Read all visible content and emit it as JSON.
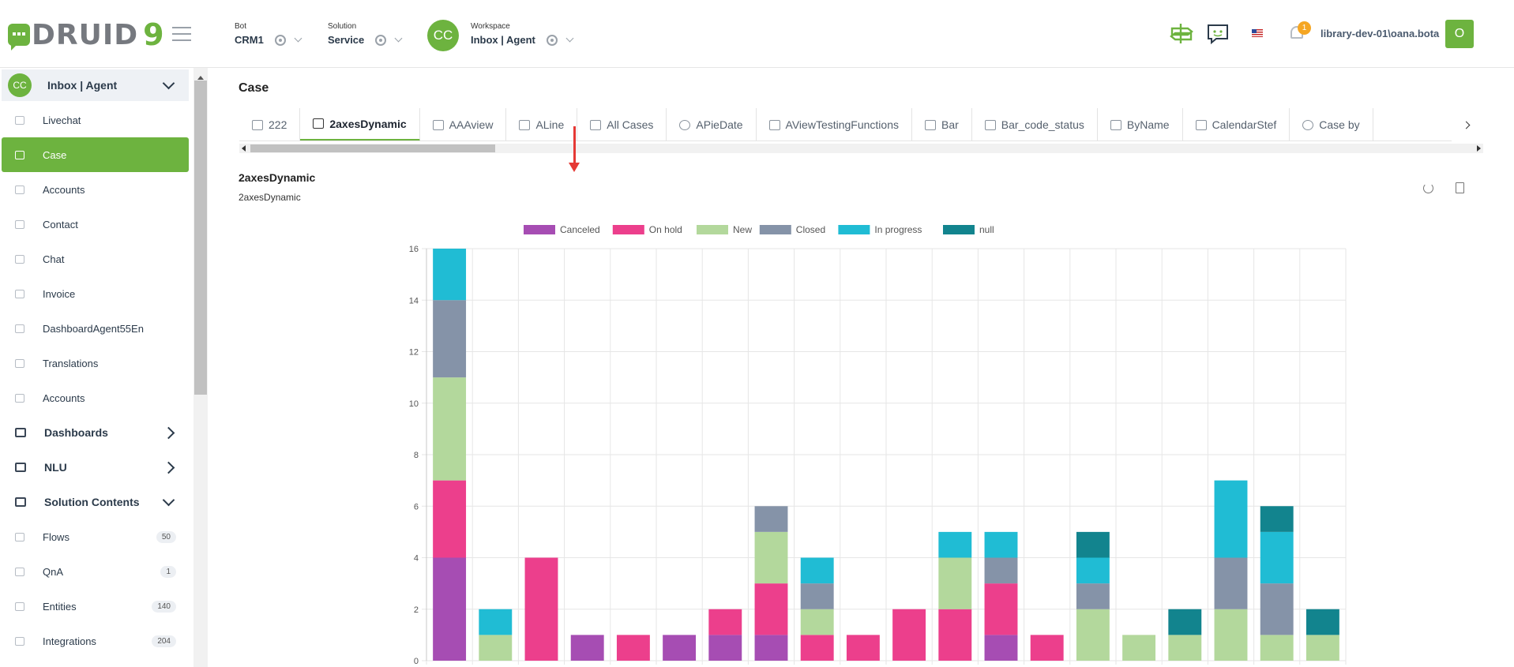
{
  "header": {
    "logo_text": "DRUID",
    "logo_suffix": "9",
    "bot": {
      "label": "Bot",
      "value": "CRM1"
    },
    "solution": {
      "label": "Solution",
      "value": "Service"
    },
    "workspace": {
      "label": "Workspace",
      "value": "Inbox | Agent",
      "avatar": "CC"
    },
    "notification_count": "1",
    "user_name": "library-dev-01\\oana.bota",
    "user_initial": "O",
    "accent_color": "#6db33f"
  },
  "sidebar": {
    "workspace_avatar": "CC",
    "workspace_title": "Inbox | Agent",
    "items": [
      {
        "label": "Livechat"
      },
      {
        "label": "Case"
      },
      {
        "label": "Accounts"
      },
      {
        "label": "Contact"
      },
      {
        "label": "Chat"
      },
      {
        "label": "Invoice"
      },
      {
        "label": "DashboardAgent55En"
      },
      {
        "label": "Translations"
      },
      {
        "label": "Accounts"
      }
    ],
    "groups": [
      {
        "label": "Dashboards"
      },
      {
        "label": "NLU"
      },
      {
        "label": "Solution Contents"
      }
    ],
    "contents": [
      {
        "label": "Flows",
        "count": "50"
      },
      {
        "label": "QnA",
        "count": "1"
      },
      {
        "label": "Entities",
        "count": "140"
      },
      {
        "label": "Integrations",
        "count": "204"
      }
    ]
  },
  "main": {
    "page_title": "Case",
    "tabs": [
      {
        "label": "222",
        "icon": "table-icon"
      },
      {
        "label": "2axesDynamic",
        "icon": "bar-chart-icon"
      },
      {
        "label": "AAAview",
        "icon": "table-icon"
      },
      {
        "label": "ALine",
        "icon": "line-chart-icon"
      },
      {
        "label": "All Cases",
        "icon": "table-icon"
      },
      {
        "label": "APieDate",
        "icon": "pie-chart-icon"
      },
      {
        "label": "AViewTestingFunctions",
        "icon": "table-icon"
      },
      {
        "label": "Bar",
        "icon": "bar-chart-icon"
      },
      {
        "label": "Bar_code_status",
        "icon": "bar-chart-icon"
      },
      {
        "label": "ByName",
        "icon": "bar-chart-icon"
      },
      {
        "label": "CalendarStef",
        "icon": "calendar-icon"
      },
      {
        "label": "Case by",
        "icon": "pie-chart-icon"
      }
    ],
    "active_tab": "2axesDynamic",
    "view_title": "2axesDynamic",
    "view_subtitle": "2axesDynamic"
  },
  "chart_data": {
    "type": "bar",
    "stacked": true,
    "categories": [
      "",
      "",
      "",
      "",
      "",
      "",
      "",
      "",
      "",
      "",
      "",
      "",
      "",
      "",
      "",
      "",
      "",
      "",
      "",
      ""
    ],
    "ylim": [
      0,
      16
    ],
    "yticks": [
      0,
      2,
      4,
      6,
      8,
      10,
      12,
      14,
      16
    ],
    "grid": true,
    "legend_position": "top",
    "series": [
      {
        "name": "Canceled",
        "color": "#a64db3",
        "values": [
          4,
          0,
          0,
          1,
          0,
          1,
          1,
          1,
          0,
          0,
          0,
          0,
          1,
          0,
          0,
          0,
          0,
          0,
          0,
          0
        ]
      },
      {
        "name": "On hold",
        "color": "#ec3f8c",
        "values": [
          3,
          0,
          4,
          0,
          1,
          0,
          1,
          2,
          1,
          1,
          2,
          2,
          2,
          1,
          0,
          0,
          0,
          0,
          0,
          0
        ]
      },
      {
        "name": "New",
        "color": "#b3d89c",
        "values": [
          4,
          1,
          0,
          0,
          0,
          0,
          0,
          2,
          1,
          0,
          0,
          2,
          0,
          0,
          2,
          1,
          1,
          2,
          1,
          1
        ]
      },
      {
        "name": "Closed",
        "color": "#8593a8",
        "values": [
          3,
          0,
          0,
          0,
          0,
          0,
          0,
          1,
          1,
          0,
          0,
          0,
          1,
          0,
          1,
          0,
          0,
          2,
          2,
          0
        ]
      },
      {
        "name": "In progress",
        "color": "#20bcd4",
        "values": [
          2,
          1,
          0,
          0,
          0,
          0,
          0,
          0,
          1,
          0,
          0,
          1,
          1,
          0,
          1,
          0,
          0,
          3,
          2,
          0
        ]
      },
      {
        "name": "null",
        "color": "#12848e",
        "values": [
          0,
          0,
          0,
          0,
          0,
          0,
          0,
          0,
          0,
          0,
          0,
          0,
          0,
          0,
          1,
          0,
          1,
          0,
          1,
          1
        ]
      }
    ]
  }
}
